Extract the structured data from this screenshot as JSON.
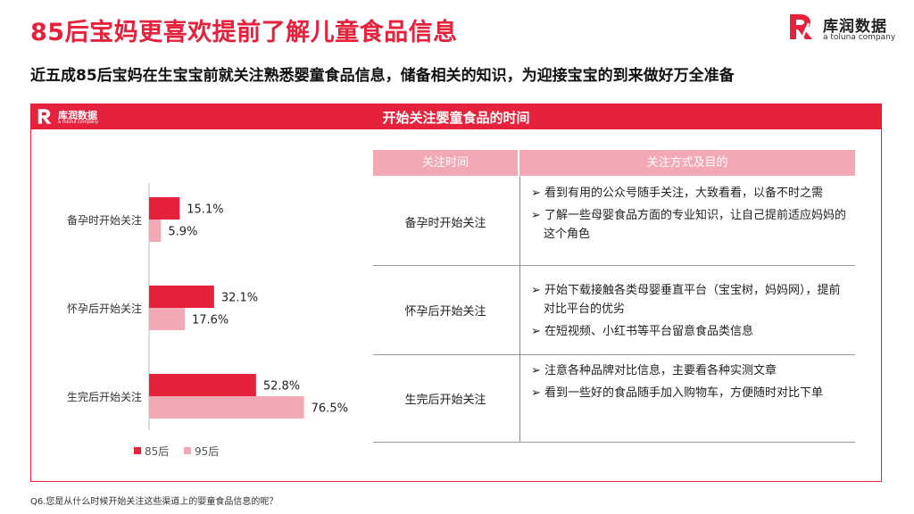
{
  "title": "85后宝妈更喜欢提前了解儿童食品信息",
  "subtitle": "近五成85后宝妈在生宝宝前就关注熟悉婴童食品信息，储备相关的知识，为迎接宝宝的到来做好万全准备",
  "logo": {
    "name": "库润数据",
    "sub": "a toluna company"
  },
  "panel": {
    "title": "开始关注婴童食品的时间",
    "logo_name": "库润数据",
    "logo_sub": "a toluna company"
  },
  "colors": {
    "accent": "#e5213c",
    "series_85": "#e5213c",
    "series_95": "#f2a9b5"
  },
  "chart_data": {
    "type": "bar",
    "orientation": "horizontal",
    "categories": [
      "备孕时开始关注",
      "怀孕后开始关注",
      "生完后开始关注"
    ],
    "series": [
      {
        "name": "85后",
        "values": [
          15.1,
          32.1,
          52.8
        ],
        "labels": [
          "15.1%",
          "32.1%",
          "52.8%"
        ],
        "color": "#e5213c"
      },
      {
        "name": "95后",
        "values": [
          5.9,
          17.6,
          76.5
        ],
        "labels": [
          "5.9%",
          "17.6%",
          "76.5%"
        ],
        "color": "#f2a9b5"
      }
    ],
    "unit": "%",
    "legend": "bottom-left"
  },
  "table": {
    "headers": [
      "关注时间",
      "关注方式及目的"
    ],
    "rows": [
      {
        "time": "备孕时开始关注",
        "items": [
          "➢ 看到有用的公众号随手关注，大致看看，以备不时之需",
          "➢ 了解一些母婴食品方面的专业知识，让自己提前适应妈妈的这个角色"
        ]
      },
      {
        "time": "怀孕后开始关注",
        "items": [
          "➢ 开始下载接触各类母婴垂直平台（宝宝树，妈妈网），提前对比平台的优劣",
          "➢ 在短视频、小红书等平台留意食品类信息"
        ]
      },
      {
        "time": "生完后开始关注",
        "items": [
          "➢ 注意各种品牌对比信息，主要看各种实测文章",
          "➢ 看到一些好的食品随手加入购物车，方便随时对比下单"
        ]
      }
    ]
  },
  "footnote": "Q6.您是从什么时候开始关注这些渠道上的婴童食品信息的呢？"
}
